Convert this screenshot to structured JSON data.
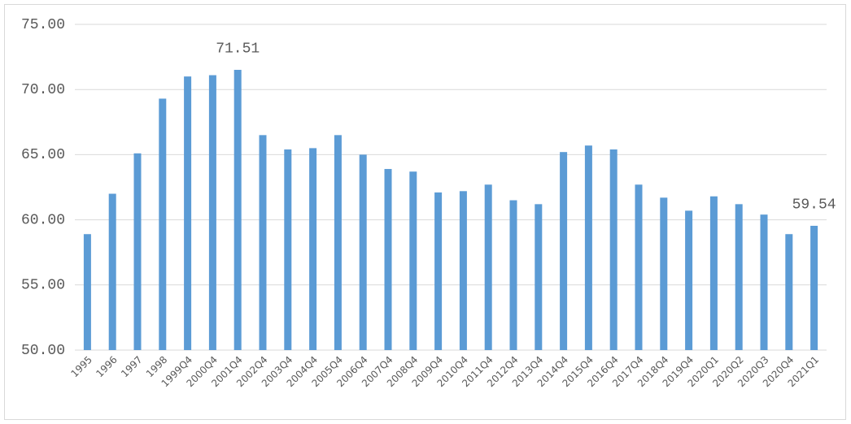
{
  "chart_data": {
    "type": "bar",
    "categories": [
      "1995",
      "1996",
      "1997",
      "1998",
      "1999Q4",
      "2000Q4",
      "2001Q4",
      "2002Q4",
      "2003Q4",
      "2004Q4",
      "2005Q4",
      "2006Q4",
      "2007Q4",
      "2008Q4",
      "2009Q4",
      "2010Q4",
      "2011Q4",
      "2012Q4",
      "2013Q4",
      "2014Q4",
      "2015Q4",
      "2016Q4",
      "2017Q4",
      "2018Q4",
      "2019Q4",
      "2020Q1",
      "2020Q2",
      "2020Q3",
      "2020Q4",
      "2021Q1"
    ],
    "values": [
      58.9,
      62.0,
      65.1,
      69.3,
      71.0,
      71.1,
      71.51,
      66.5,
      65.4,
      65.5,
      66.5,
      65.0,
      63.9,
      63.7,
      62.1,
      62.2,
      62.7,
      61.5,
      61.2,
      65.2,
      65.7,
      65.4,
      62.7,
      61.7,
      60.7,
      61.8,
      61.2,
      60.4,
      58.9,
      59.54
    ],
    "value_labels": [
      null,
      null,
      null,
      null,
      null,
      null,
      "71.51",
      null,
      null,
      null,
      null,
      null,
      null,
      null,
      null,
      null,
      null,
      null,
      null,
      null,
      null,
      null,
      null,
      null,
      null,
      null,
      null,
      null,
      null,
      "59.54"
    ],
    "color": "#5b9bd5",
    "ylim": [
      50,
      75
    ],
    "yticks": [
      {
        "value": 50,
        "label": "50.00"
      },
      {
        "value": 55,
        "label": "55.00"
      },
      {
        "value": 60,
        "label": "60.00"
      },
      {
        "value": 65,
        "label": "65.00"
      },
      {
        "value": 70,
        "label": "70.00"
      },
      {
        "value": 75,
        "label": "75.00"
      }
    ],
    "grid": true
  }
}
